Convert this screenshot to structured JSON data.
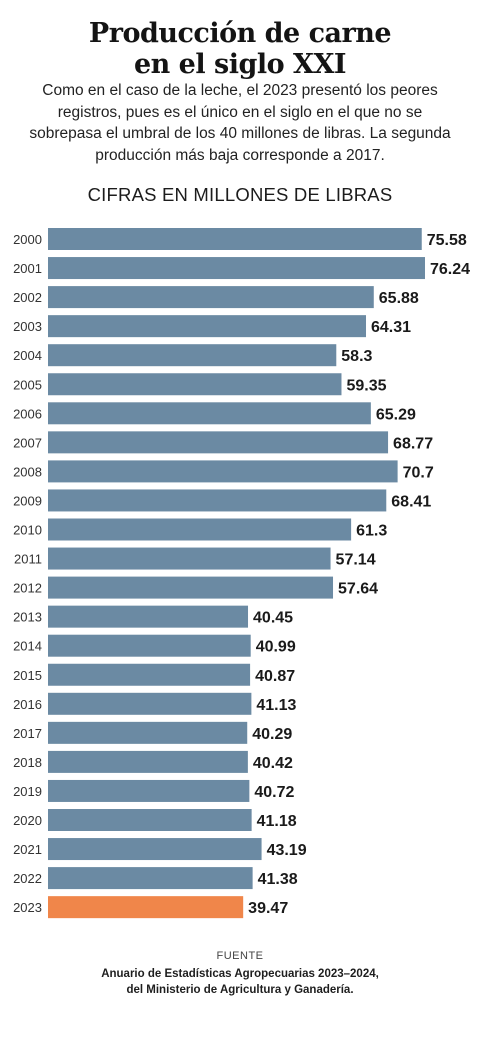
{
  "header": {
    "title_line1": "Producción de carne",
    "title_line2": "en el siglo XXI",
    "subtitle": "Como en el caso de la leche, el 2023 presentó los peores registros, pues es el único en el siglo en el que no se sobrepasa el umbral de los 40 millones de libras. La segunda producción más baja corresponde a 2017.",
    "units_label": "CIFRAS EN MILLONES DE LIBRAS"
  },
  "chart_data": {
    "type": "bar",
    "orientation": "horizontal",
    "categories": [
      "2000",
      "2001",
      "2002",
      "2003",
      "2004",
      "2005",
      "2006",
      "2007",
      "2008",
      "2009",
      "2010",
      "2011",
      "2012",
      "2013",
      "2014",
      "2015",
      "2016",
      "2017",
      "2018",
      "2019",
      "2020",
      "2021",
      "2022",
      "2023"
    ],
    "values": [
      75.58,
      76.24,
      65.88,
      64.31,
      58.3,
      59.35,
      65.29,
      68.77,
      70.7,
      68.41,
      61.3,
      57.14,
      57.64,
      40.45,
      40.99,
      40.87,
      41.13,
      40.29,
      40.42,
      40.72,
      41.18,
      43.19,
      41.38,
      39.47
    ],
    "value_labels": [
      "75.58",
      "76.24",
      "65.88",
      "64.31",
      "58.3",
      "59.35",
      "65.29",
      "68.77",
      "70.7",
      "68.41",
      "61.3",
      "57.14",
      "57.64",
      "40.45",
      "40.99",
      "40.87",
      "41.13",
      "40.29",
      "40.42",
      "40.72",
      "41.18",
      "43.19",
      "41.38",
      "39.47"
    ],
    "xlim": [
      0,
      76.24
    ],
    "grid": false,
    "legend": "none",
    "bar_color": "#6b8aa3",
    "highlight_color": "#f0864a",
    "highlight_category": "2023"
  },
  "source": {
    "label": "FUENTE",
    "line1": "Anuario de Estadísticas Agropecuarias 2023–2024,",
    "line2": "del Ministerio de Agricultura y Ganadería."
  }
}
